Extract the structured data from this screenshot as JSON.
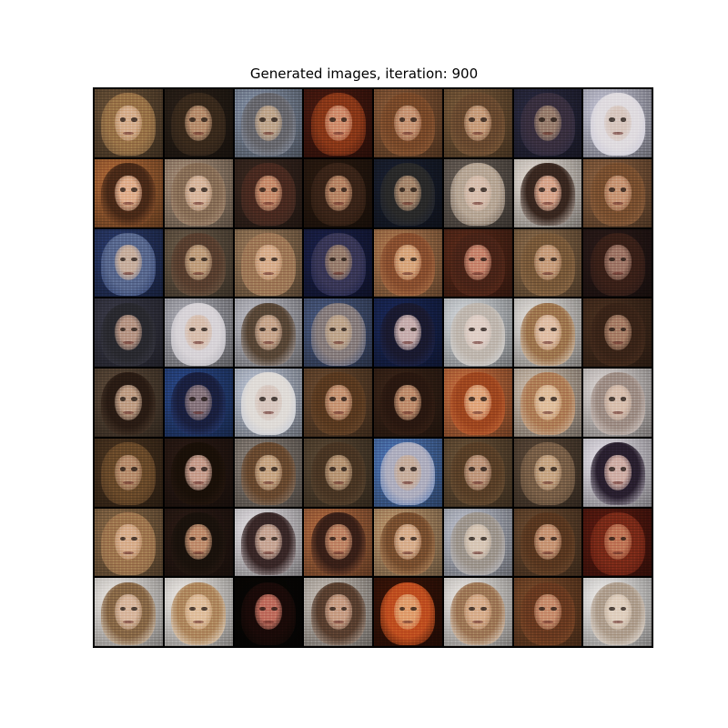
{
  "figure": {
    "title": "Generated images, iteration: 900"
  },
  "grid": {
    "rows": 8,
    "cols": 8,
    "tiles": [
      {
        "bg": "#6b5238",
        "hair": "#9a7448",
        "skin": "#d6b090"
      },
      {
        "bg": "#2a2018",
        "hair": "#3a2a1c",
        "skin": "#b89070"
      },
      {
        "bg": "#8894a8",
        "hair": "#6a6a70",
        "skin": "#c0a890"
      },
      {
        "bg": "#4a1a10",
        "hair": "#8a3818",
        "skin": "#d09070"
      },
      {
        "bg": "#8a5a38",
        "hair": "#7a4a2a",
        "skin": "#c89878"
      },
      {
        "bg": "#7a5a3a",
        "hair": "#6a4a30",
        "skin": "#c8a080"
      },
      {
        "bg": "#2a2a40",
        "hair": "#3a3040",
        "skin": "#9a8070"
      },
      {
        "bg": "#c8c8d8",
        "hair": "#e0dce0",
        "skin": "#d8c8c0"
      },
      {
        "bg": "#b06a38",
        "hair": "#4a2a18",
        "skin": "#e0b090"
      },
      {
        "bg": "#a8907a",
        "hair": "#8a7058",
        "skin": "#d8b8a0"
      },
      {
        "bg": "#3a2820",
        "hair": "#4a2a20",
        "skin": "#c89070"
      },
      {
        "bg": "#2a1a10",
        "hair": "#3a2418",
        "skin": "#b88868"
      },
      {
        "bg": "#1a2030",
        "hair": "#2a2a2a",
        "skin": "#a88a70"
      },
      {
        "bg": "#6a6058",
        "hair": "#b8a898",
        "skin": "#d8c0b0"
      },
      {
        "bg": "#e8e0d8",
        "hair": "#3a2820",
        "skin": "#d8a890"
      },
      {
        "bg": "#8a6040",
        "hair": "#7a5030",
        "skin": "#c89878"
      },
      {
        "bg": "#2a3a6a",
        "hair": "#5a6a90",
        "skin": "#c8b0a0"
      },
      {
        "bg": "#6a5a48",
        "hair": "#5a4030",
        "skin": "#c0a080"
      },
      {
        "bg": "#9a7a5a",
        "hair": "#a07a58",
        "skin": "#d8b090"
      },
      {
        "bg": "#1a2048",
        "hair": "#3a3858",
        "skin": "#9a8070"
      },
      {
        "bg": "#b07a50",
        "hair": "#8a5030",
        "skin": "#d8a880"
      },
      {
        "bg": "#5a2a1a",
        "hair": "#4a2418",
        "skin": "#c88870"
      },
      {
        "bg": "#8a6a4a",
        "hair": "#7a5a3a",
        "skin": "#c8a080"
      },
      {
        "bg": "#2a1a18",
        "hair": "#3a2018",
        "skin": "#a07868"
      },
      {
        "bg": "#3a3a48",
        "hair": "#2a2a30",
        "skin": "#b89888"
      },
      {
        "bg": "#b0b0b8",
        "hair": "#d8d4d8",
        "skin": "#d8c0b0"
      },
      {
        "bg": "#c0c0c8",
        "hair": "#5a4838",
        "skin": "#c8a890"
      },
      {
        "bg": "#4a5a80",
        "hair": "#8a8080",
        "skin": "#c0a890"
      },
      {
        "bg": "#1a2858",
        "hair": "#1a1a30",
        "skin": "#c8b0b0"
      },
      {
        "bg": "#d8dce0",
        "hair": "#c0b8b0",
        "skin": "#e0d0c8"
      },
      {
        "bg": "#e8e4e0",
        "hair": "#a07850",
        "skin": "#e0c0a8"
      },
      {
        "bg": "#4a3020",
        "hair": "#3a2418",
        "skin": "#a88068"
      },
      {
        "bg": "#5a4838",
        "hair": "#2a1c14",
        "skin": "#c0a088"
      },
      {
        "bg": "#2a4888",
        "hair": "#1a2040",
        "skin": "#8a7880"
      },
      {
        "bg": "#c0c8d8",
        "hair": "#e0dcd8",
        "skin": "#d8c8c0"
      },
      {
        "bg": "#6a4a30",
        "hair": "#5a3a20",
        "skin": "#c89878"
      },
      {
        "bg": "#3a2418",
        "hair": "#2a1810",
        "skin": "#c09070"
      },
      {
        "bg": "#c87040",
        "hair": "#a04820",
        "skin": "#e0a880"
      },
      {
        "bg": "#d0c0b0",
        "hair": "#b08058",
        "skin": "#e0c0a0"
      },
      {
        "bg": "#e0dad8",
        "hair": "#a09088",
        "skin": "#d8c0b0"
      },
      {
        "bg": "#4a3420",
        "hair": "#6a4a2a",
        "skin": "#b89070"
      },
      {
        "bg": "#2a1a14",
        "hair": "#1a1008",
        "skin": "#c8a090"
      },
      {
        "bg": "#8a8078",
        "hair": "#6a4a30",
        "skin": "#c8a888"
      },
      {
        "bg": "#5a4834",
        "hair": "#4a3624",
        "skin": "#b89878"
      },
      {
        "bg": "#5078b8",
        "hair": "#b0b0c0",
        "skin": "#c8b0a0"
      },
      {
        "bg": "#6a5238",
        "hair": "#5a4028",
        "skin": "#c09a80"
      },
      {
        "bg": "#5a4838",
        "hair": "#7a6048",
        "skin": "#c8a888"
      },
      {
        "bg": "#e8e4ec",
        "hair": "#2a2030",
        "skin": "#d0b0a8"
      },
      {
        "bg": "#8a6a48",
        "hair": "#a07850",
        "skin": "#d8b090"
      },
      {
        "bg": "#2a1a14",
        "hair": "#1a120c",
        "skin": "#c09070"
      },
      {
        "bg": "#e8e4e8",
        "hair": "#3a2828",
        "skin": "#c8a898"
      },
      {
        "bg": "#b06a40",
        "hair": "#3a2018",
        "skin": "#c08868"
      },
      {
        "bg": "#c09a70",
        "hair": "#7a5030",
        "skin": "#d8b090"
      },
      {
        "bg": "#c0c4d0",
        "hair": "#a09890",
        "skin": "#d8c8b8"
      },
      {
        "bg": "#6a4a30",
        "hair": "#5a3820",
        "skin": "#c89878"
      },
      {
        "bg": "#5a1a10",
        "hair": "#7a2a18",
        "skin": "#c07858"
      },
      {
        "bg": "#f0ece8",
        "hair": "#8a6a48",
        "skin": "#d8b8a0"
      },
      {
        "bg": "#f4f0ec",
        "hair": "#b08a60",
        "skin": "#e0c0a0"
      },
      {
        "bg": "#080604",
        "hair": "#1a0a08",
        "skin": "#c07060"
      },
      {
        "bg": "#c8c0b8",
        "hair": "#5a4030",
        "skin": "#c8a088"
      },
      {
        "bg": "#3a1408",
        "hair": "#c05020",
        "skin": "#e0a070"
      },
      {
        "bg": "#f0ece8",
        "hair": "#a07a58",
        "skin": "#d8b090"
      },
      {
        "bg": "#7a4a2a",
        "hair": "#6a3a20",
        "skin": "#c89070"
      },
      {
        "bg": "#f4f2f0",
        "hair": "#b0a090",
        "skin": "#e0d0c0"
      }
    ]
  }
}
